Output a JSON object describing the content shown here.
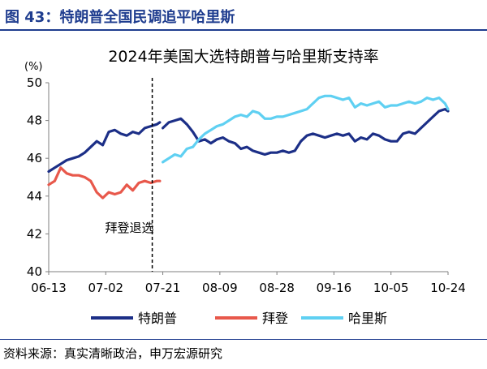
{
  "header": {
    "title": "图 43：特朗普全国民调追平哈里斯"
  },
  "footer": {
    "source": "资料来源：真实清晰政治，申万宏源研究"
  },
  "colors": {
    "header": "#1f3d8f",
    "trump": "#1c2f87",
    "biden": "#e8584b",
    "harris": "#5fd0f2",
    "axis": "#7f7f7f",
    "event_line": "#000000"
  },
  "chart_data": {
    "type": "line",
    "title": "2024年美国大选特朗普与哈里斯支持率",
    "ylabel": "(%)",
    "ylim": [
      40,
      50
    ],
    "yticks": [
      40,
      42,
      44,
      46,
      48,
      50
    ],
    "xlim": [
      "06-13",
      "10-24"
    ],
    "xticks": [
      "06-13",
      "07-02",
      "07-21",
      "08-09",
      "08-28",
      "09-16",
      "10-05",
      "10-24"
    ],
    "legend_position": "bottom",
    "annotation": {
      "label": "拜登退选",
      "x": "07-21"
    },
    "series": [
      {
        "name": "特朗普",
        "color": "#1c2f87",
        "segments": [
          {
            "x": [
              "06-13",
              "06-15",
              "06-17",
              "06-19",
              "06-21",
              "06-23",
              "06-25",
              "06-27",
              "06-29",
              "07-01",
              "07-03",
              "07-05",
              "07-07",
              "07-09",
              "07-11",
              "07-13",
              "07-15",
              "07-17",
              "07-19",
              "07-20"
            ],
            "y": [
              45.3,
              45.5,
              45.7,
              45.9,
              46.0,
              46.1,
              46.3,
              46.6,
              46.9,
              46.7,
              47.4,
              47.5,
              47.3,
              47.2,
              47.4,
              47.3,
              47.6,
              47.7,
              47.8,
              47.9
            ]
          },
          {
            "x": [
              "07-21",
              "07-23",
              "07-25",
              "07-27",
              "07-29",
              "07-31",
              "08-02",
              "08-04",
              "08-06",
              "08-08",
              "08-10",
              "08-12",
              "08-14",
              "08-16",
              "08-18",
              "08-20",
              "08-22",
              "08-24",
              "08-26",
              "08-28",
              "08-30",
              "09-01",
              "09-03",
              "09-05",
              "09-07",
              "09-09",
              "09-11",
              "09-13",
              "09-15",
              "09-17",
              "09-19",
              "09-21",
              "09-23",
              "09-25",
              "09-27",
              "09-29",
              "10-01",
              "10-03",
              "10-05",
              "10-07",
              "10-09",
              "10-11",
              "10-13",
              "10-15",
              "10-17",
              "10-19",
              "10-21",
              "10-23",
              "10-24"
            ],
            "y": [
              47.6,
              47.9,
              48.0,
              48.1,
              47.8,
              47.4,
              46.9,
              47.0,
              46.8,
              47.0,
              47.1,
              46.9,
              46.8,
              46.5,
              46.6,
              46.4,
              46.3,
              46.2,
              46.3,
              46.3,
              46.4,
              46.3,
              46.4,
              46.9,
              47.2,
              47.3,
              47.2,
              47.1,
              47.2,
              47.3,
              47.2,
              47.3,
              46.9,
              47.1,
              47.0,
              47.3,
              47.2,
              47.0,
              46.9,
              46.9,
              47.3,
              47.4,
              47.3,
              47.6,
              47.9,
              48.2,
              48.5,
              48.6,
              48.5
            ]
          }
        ]
      },
      {
        "name": "拜登",
        "color": "#e8584b",
        "segments": [
          {
            "x": [
              "06-13",
              "06-15",
              "06-17",
              "06-19",
              "06-21",
              "06-23",
              "06-25",
              "06-27",
              "06-29",
              "07-01",
              "07-03",
              "07-05",
              "07-07",
              "07-09",
              "07-11",
              "07-13",
              "07-15",
              "07-17",
              "07-19",
              "07-20"
            ],
            "y": [
              44.6,
              44.8,
              45.5,
              45.2,
              45.1,
              45.1,
              45.0,
              44.8,
              44.2,
              43.9,
              44.2,
              44.1,
              44.2,
              44.6,
              44.3,
              44.7,
              44.8,
              44.7,
              44.8,
              44.8
            ]
          }
        ]
      },
      {
        "name": "哈里斯",
        "color": "#5fd0f2",
        "segments": [
          {
            "x": [
              "07-21",
              "07-23",
              "07-25",
              "07-27",
              "07-29",
              "07-31",
              "08-02",
              "08-04",
              "08-06",
              "08-08",
              "08-10",
              "08-12",
              "08-14",
              "08-16",
              "08-18",
              "08-20",
              "08-22",
              "08-24",
              "08-26",
              "08-28",
              "08-30",
              "09-01",
              "09-03",
              "09-05",
              "09-07",
              "09-09",
              "09-11",
              "09-13",
              "09-15",
              "09-17",
              "09-19",
              "09-21",
              "09-23",
              "09-25",
              "09-27",
              "09-29",
              "10-01",
              "10-03",
              "10-05",
              "10-07",
              "10-09",
              "10-11",
              "10-13",
              "10-15",
              "10-17",
              "10-19",
              "10-21",
              "10-23",
              "10-24"
            ],
            "y": [
              45.8,
              46.0,
              46.2,
              46.1,
              46.5,
              46.6,
              47.0,
              47.3,
              47.5,
              47.7,
              47.8,
              48.0,
              48.2,
              48.3,
              48.2,
              48.5,
              48.4,
              48.1,
              48.1,
              48.2,
              48.2,
              48.3,
              48.4,
              48.5,
              48.6,
              48.9,
              49.2,
              49.3,
              49.3,
              49.2,
              49.1,
              49.2,
              48.7,
              48.9,
              48.8,
              48.9,
              49.0,
              48.7,
              48.8,
              48.8,
              48.9,
              49.0,
              48.9,
              49.0,
              49.2,
              49.1,
              49.2,
              48.9,
              48.6
            ]
          }
        ]
      }
    ]
  }
}
